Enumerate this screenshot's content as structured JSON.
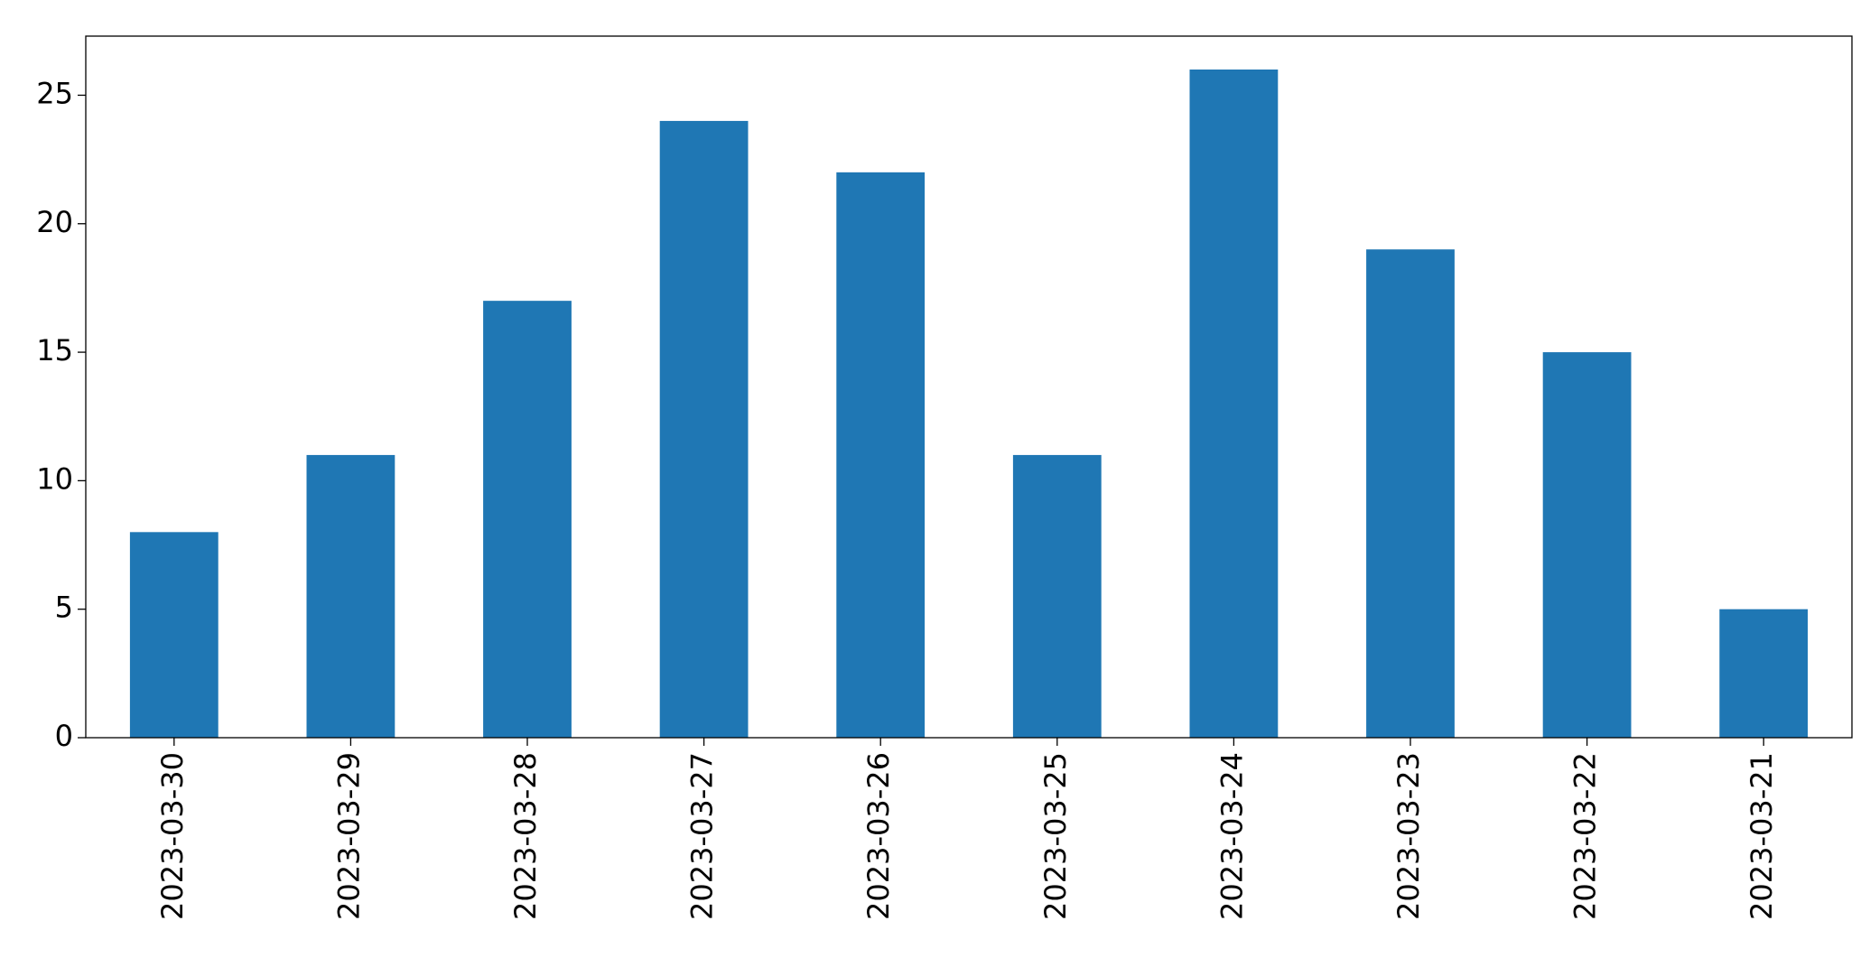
{
  "chart_data": {
    "type": "bar",
    "categories": [
      "2023-03-30",
      "2023-03-29",
      "2023-03-28",
      "2023-03-27",
      "2023-03-26",
      "2023-03-25",
      "2023-03-24",
      "2023-03-23",
      "2023-03-22",
      "2023-03-21"
    ],
    "values": [
      8,
      11,
      17,
      24,
      22,
      11,
      26,
      19,
      15,
      5
    ],
    "color": "#1f77b4",
    "ylim": [
      0,
      27.3
    ],
    "yticks": [
      0,
      5,
      10,
      15,
      20,
      25
    ],
    "grid": false
  }
}
